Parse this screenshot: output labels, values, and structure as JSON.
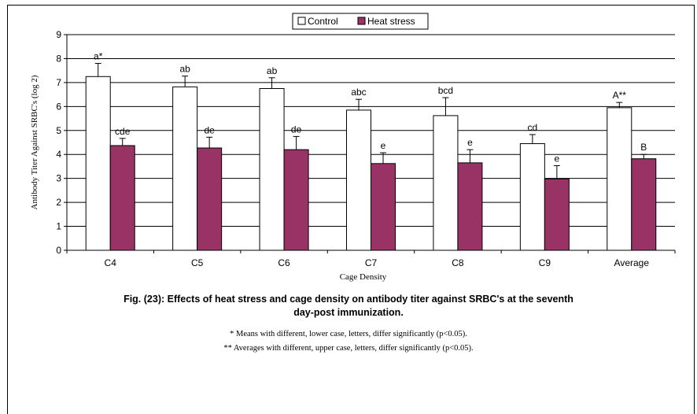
{
  "chart_data": {
    "type": "bar",
    "categories": [
      "C4",
      "C5",
      "C6",
      "C7",
      "C8",
      "C9",
      "Average"
    ],
    "series": [
      {
        "name": "Control",
        "color": "#ffffff",
        "values": [
          7.25,
          6.82,
          6.75,
          5.85,
          5.62,
          4.45,
          5.95
        ],
        "errors": [
          0.55,
          0.45,
          0.45,
          0.45,
          0.75,
          0.38,
          0.22
        ],
        "labels": [
          "a*",
          "ab",
          "ab",
          "abc",
          "bcd",
          "cd",
          "A**"
        ]
      },
      {
        "name": "Heat stress",
        "color": "#993366",
        "values": [
          4.37,
          4.27,
          4.2,
          3.62,
          3.65,
          2.98,
          3.82
        ],
        "errors": [
          0.3,
          0.45,
          0.55,
          0.45,
          0.55,
          0.55,
          0.18
        ],
        "labels": [
          "cde",
          "de",
          "de",
          "e",
          "e",
          "e",
          "B"
        ]
      }
    ],
    "xlabel": "Cage Density",
    "ylabel": "Antibody Titer Against SRBC's (log 2)",
    "ylim": [
      0,
      9
    ],
    "yticks": [
      "0",
      "1",
      "2",
      "3",
      "4",
      "5",
      "6",
      "7",
      "8",
      "9"
    ],
    "grid": true,
    "legend": "top-center"
  },
  "caption": {
    "line1": "Fig. (23): Effects of heat stress and cage density on antibody titer against SRBC's  at the seventh",
    "line2": "day-post immunization.",
    "note1": "* Means with different, lower case, letters, differ significantly (p<0.05).",
    "note2": "** Averages with different, upper case, letters, differ significantly (p<0.05)."
  }
}
